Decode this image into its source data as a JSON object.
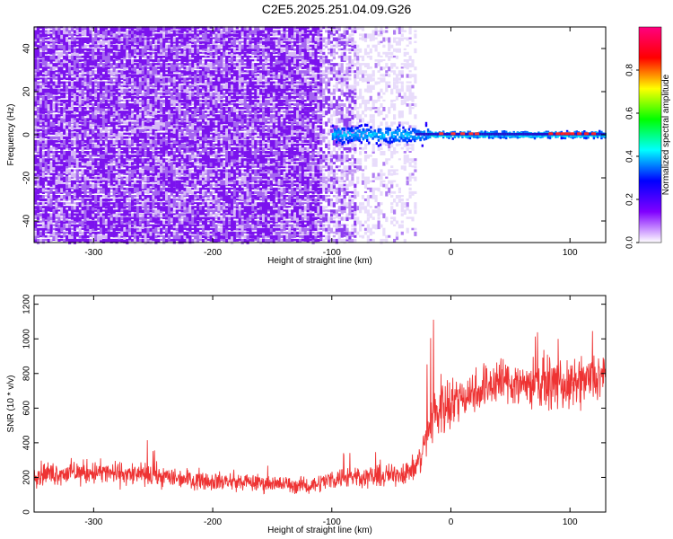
{
  "title": "C2E5.2025.251.04.09.G26",
  "chart_data": [
    {
      "type": "heatmap",
      "title": "C2E5.2025.251.04.09.G26",
      "xlabel": "Height of straight line (km)",
      "ylabel": "Frequency (Hz)",
      "xlim": [
        -350,
        130
      ],
      "ylim": [
        -50,
        50
      ],
      "xticks": [
        -300,
        -200,
        -100,
        0,
        100
      ],
      "yticks": [
        -40,
        -20,
        0,
        20,
        40
      ],
      "colorbar": {
        "label": "Normalized spectral amplitude",
        "range": [
          0,
          1
        ],
        "ticks": [
          0.0,
          0.2,
          0.4,
          0.6,
          0.8
        ],
        "colormap": [
          "#ffffff",
          "#8000ff",
          "#0000ff",
          "#00ffff",
          "#00ff00",
          "#ffff00",
          "#ff0000",
          "#ff0080"
        ]
      },
      "features": {
        "noise_region_x": [
          -350,
          -30
        ],
        "signal_line_frequency_hz": 0,
        "signal_start_x": -100,
        "peak_amplitude_x": [
          90,
          110
        ]
      }
    },
    {
      "type": "line",
      "xlabel": "Height of straight line (km)",
      "ylabel": "SNR (10 * v/v)",
      "xlim": [
        -350,
        130
      ],
      "ylim": [
        0,
        1250
      ],
      "xticks": [
        -300,
        -200,
        -100,
        0,
        100
      ],
      "yticks": [
        0,
        200,
        400,
        600,
        800,
        1000,
        1200
      ],
      "color": "#ee3333",
      "series": [
        {
          "x": [
            -350,
            -300,
            -250,
            -200,
            -150,
            -120,
            -100,
            -80,
            -60,
            -40,
            -30,
            -25,
            -20,
            -15,
            -10,
            0,
            20,
            40,
            60,
            80,
            100,
            115,
            130
          ],
          "values": [
            220,
            230,
            210,
            180,
            165,
            150,
            190,
            210,
            200,
            230,
            250,
            320,
            460,
            560,
            600,
            640,
            700,
            760,
            740,
            750,
            720,
            760,
            780
          ]
        }
      ]
    }
  ]
}
